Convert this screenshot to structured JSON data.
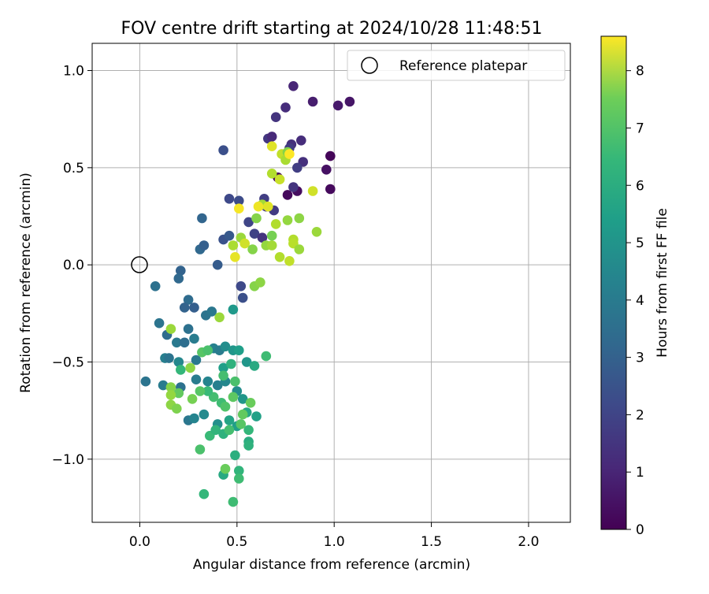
{
  "chart_data": {
    "type": "scatter",
    "title": "FOV centre drift starting at 2024/10/28 11:48:51",
    "xlabel": "Angular distance from reference (arcmin)",
    "ylabel": "Rotation from reference (arcmin)",
    "xlim": [
      -0.245,
      2.215
    ],
    "ylim": [
      -1.325,
      1.14
    ],
    "x_ticks": [
      0.0,
      0.5,
      1.0,
      1.5,
      2.0
    ],
    "x_tick_labels": [
      "0.0",
      "0.5",
      "1.0",
      "1.5",
      "2.0"
    ],
    "y_ticks": [
      -1.0,
      -0.5,
      0.0,
      0.5,
      1.0
    ],
    "y_tick_labels": [
      "−1.0",
      "−0.5",
      "0.0",
      "0.5",
      "1.0"
    ],
    "grid": true,
    "legend": {
      "location": "top-right",
      "entries": [
        {
          "label": "Reference platepar",
          "marker": "open-circle"
        }
      ]
    },
    "reference_point": {
      "x": 0.0,
      "y": 0.0
    },
    "colorbar": {
      "label": "Hours from first FF file",
      "colormap": "viridis",
      "range": [
        0,
        8.6
      ],
      "ticks": [
        0,
        1,
        2,
        3,
        4,
        5,
        6,
        7,
        8
      ],
      "tick_labels": [
        "0",
        "1",
        "2",
        "3",
        "4",
        "5",
        "6",
        "7",
        "8"
      ]
    },
    "points": [
      {
        "x": 0.79,
        "y": 0.92,
        "t": 0.9
      },
      {
        "x": 0.89,
        "y": 0.84,
        "t": 0.7
      },
      {
        "x": 1.02,
        "y": 0.82,
        "t": 0.6
      },
      {
        "x": 1.08,
        "y": 0.84,
        "t": 0.5
      },
      {
        "x": 0.75,
        "y": 0.81,
        "t": 1.1
      },
      {
        "x": 0.7,
        "y": 0.76,
        "t": 1.3
      },
      {
        "x": 0.66,
        "y": 0.65,
        "t": 1.4
      },
      {
        "x": 0.68,
        "y": 0.66,
        "t": 1.0
      },
      {
        "x": 0.78,
        "y": 0.62,
        "t": 1.2
      },
      {
        "x": 0.83,
        "y": 0.64,
        "t": 1.1
      },
      {
        "x": 0.77,
        "y": 0.6,
        "t": 1.5
      },
      {
        "x": 0.98,
        "y": 0.56,
        "t": 0.1
      },
      {
        "x": 0.84,
        "y": 0.53,
        "t": 1.2
      },
      {
        "x": 0.81,
        "y": 0.5,
        "t": 1.6
      },
      {
        "x": 0.96,
        "y": 0.49,
        "t": 0.4
      },
      {
        "x": 0.98,
        "y": 0.39,
        "t": 0.2
      },
      {
        "x": 0.81,
        "y": 0.38,
        "t": 0.3
      },
      {
        "x": 0.76,
        "y": 0.36,
        "t": 0.2
      },
      {
        "x": 0.79,
        "y": 0.4,
        "t": 1.3
      },
      {
        "x": 0.71,
        "y": 0.45,
        "t": 0.1
      },
      {
        "x": 0.43,
        "y": 0.59,
        "t": 2.1
      },
      {
        "x": 0.46,
        "y": 0.34,
        "t": 1.9
      },
      {
        "x": 0.51,
        "y": 0.33,
        "t": 2.0
      },
      {
        "x": 0.64,
        "y": 0.34,
        "t": 1.6
      },
      {
        "x": 0.65,
        "y": 0.3,
        "t": 1.4
      },
      {
        "x": 0.69,
        "y": 0.28,
        "t": 1.5
      },
      {
        "x": 0.56,
        "y": 0.22,
        "t": 1.8
      },
      {
        "x": 0.59,
        "y": 0.16,
        "t": 1.7
      },
      {
        "x": 0.63,
        "y": 0.14,
        "t": 1.3
      },
      {
        "x": 0.43,
        "y": 0.13,
        "t": 2.2
      },
      {
        "x": 0.46,
        "y": 0.15,
        "t": 2.4
      },
      {
        "x": 0.52,
        "y": -0.11,
        "t": 1.9
      },
      {
        "x": 0.53,
        "y": -0.17,
        "t": 2.1
      },
      {
        "x": 0.32,
        "y": 0.24,
        "t": 2.8
      },
      {
        "x": 0.31,
        "y": 0.08,
        "t": 2.9
      },
      {
        "x": 0.33,
        "y": 0.1,
        "t": 2.6
      },
      {
        "x": 0.4,
        "y": 0.0,
        "t": 2.5
      },
      {
        "x": 0.21,
        "y": -0.03,
        "t": 2.7
      },
      {
        "x": 0.2,
        "y": -0.07,
        "t": 2.9
      },
      {
        "x": 0.08,
        "y": -0.11,
        "t": 3.2
      },
      {
        "x": 0.25,
        "y": -0.18,
        "t": 3.0
      },
      {
        "x": 0.23,
        "y": -0.22,
        "t": 2.7
      },
      {
        "x": 0.28,
        "y": -0.22,
        "t": 2.6
      },
      {
        "x": 0.34,
        "y": -0.26,
        "t": 3.3
      },
      {
        "x": 0.37,
        "y": -0.24,
        "t": 3.4
      },
      {
        "x": 0.1,
        "y": -0.3,
        "t": 3.3
      },
      {
        "x": 0.14,
        "y": -0.36,
        "t": 3.0
      },
      {
        "x": 0.19,
        "y": -0.4,
        "t": 3.5
      },
      {
        "x": 0.23,
        "y": -0.4,
        "t": 3.1
      },
      {
        "x": 0.25,
        "y": -0.33,
        "t": 3.2
      },
      {
        "x": 0.28,
        "y": -0.38,
        "t": 3.6
      },
      {
        "x": 0.38,
        "y": -0.43,
        "t": 3.8
      },
      {
        "x": 0.41,
        "y": -0.44,
        "t": 3.6
      },
      {
        "x": 0.44,
        "y": -0.42,
        "t": 4.2
      },
      {
        "x": 0.48,
        "y": -0.44,
        "t": 4.5
      },
      {
        "x": 0.51,
        "y": -0.44,
        "t": 4.8
      },
      {
        "x": 0.48,
        "y": -0.23,
        "t": 4.6
      },
      {
        "x": 0.13,
        "y": -0.48,
        "t": 3.7
      },
      {
        "x": 0.15,
        "y": -0.48,
        "t": 3.3
      },
      {
        "x": 0.2,
        "y": -0.5,
        "t": 4.0
      },
      {
        "x": 0.29,
        "y": -0.49,
        "t": 3.5
      },
      {
        "x": 0.43,
        "y": -0.53,
        "t": 4.8
      },
      {
        "x": 0.47,
        "y": -0.51,
        "t": 5.5
      },
      {
        "x": 0.55,
        "y": -0.5,
        "t": 4.5
      },
      {
        "x": 0.59,
        "y": -0.52,
        "t": 5.2
      },
      {
        "x": 0.65,
        "y": -0.47,
        "t": 5.9
      },
      {
        "x": 0.03,
        "y": -0.6,
        "t": 3.3
      },
      {
        "x": 0.12,
        "y": -0.62,
        "t": 3.6
      },
      {
        "x": 0.21,
        "y": -0.63,
        "t": 3.2
      },
      {
        "x": 0.29,
        "y": -0.59,
        "t": 3.6
      },
      {
        "x": 0.35,
        "y": -0.6,
        "t": 3.9
      },
      {
        "x": 0.4,
        "y": -0.62,
        "t": 3.7
      },
      {
        "x": 0.44,
        "y": -0.6,
        "t": 4.0
      },
      {
        "x": 0.49,
        "y": -0.6,
        "t": 6.1
      },
      {
        "x": 0.5,
        "y": -0.65,
        "t": 4.2
      },
      {
        "x": 0.53,
        "y": -0.69,
        "t": 4.5
      },
      {
        "x": 0.25,
        "y": -0.8,
        "t": 3.4
      },
      {
        "x": 0.28,
        "y": -0.79,
        "t": 3.9
      },
      {
        "x": 0.33,
        "y": -0.77,
        "t": 4.1
      },
      {
        "x": 0.4,
        "y": -0.82,
        "t": 4.3
      },
      {
        "x": 0.46,
        "y": -0.8,
        "t": 5.0
      },
      {
        "x": 0.5,
        "y": -0.83,
        "t": 4.8
      },
      {
        "x": 0.55,
        "y": -0.76,
        "t": 5.1
      },
      {
        "x": 0.6,
        "y": -0.78,
        "t": 4.9
      },
      {
        "x": 0.56,
        "y": -0.85,
        "t": 5.7
      },
      {
        "x": 0.56,
        "y": -0.91,
        "t": 5.3
      },
      {
        "x": 0.56,
        "y": -0.93,
        "t": 5.5
      },
      {
        "x": 0.49,
        "y": -0.98,
        "t": 5.4
      },
      {
        "x": 0.43,
        "y": -1.08,
        "t": 5.2
      },
      {
        "x": 0.51,
        "y": -1.06,
        "t": 5.6
      },
      {
        "x": 0.51,
        "y": -1.1,
        "t": 5.9
      },
      {
        "x": 0.33,
        "y": -1.18,
        "t": 5.7
      },
      {
        "x": 0.48,
        "y": -1.22,
        "t": 5.9
      },
      {
        "x": 0.31,
        "y": -0.95,
        "t": 6.1
      },
      {
        "x": 0.44,
        "y": -1.05,
        "t": 6.6
      },
      {
        "x": 0.36,
        "y": -0.88,
        "t": 5.8
      },
      {
        "x": 0.39,
        "y": -0.85,
        "t": 5.6
      },
      {
        "x": 0.43,
        "y": -0.87,
        "t": 5.5
      },
      {
        "x": 0.46,
        "y": -0.85,
        "t": 6.0
      },
      {
        "x": 0.52,
        "y": -0.82,
        "t": 6.3
      },
      {
        "x": 0.53,
        "y": -0.77,
        "t": 6.5
      },
      {
        "x": 0.42,
        "y": -0.71,
        "t": 5.9
      },
      {
        "x": 0.44,
        "y": -0.73,
        "t": 6.2
      },
      {
        "x": 0.48,
        "y": -0.68,
        "t": 6.4
      },
      {
        "x": 0.57,
        "y": -0.71,
        "t": 6.6
      },
      {
        "x": 0.38,
        "y": -0.68,
        "t": 6.0
      },
      {
        "x": 0.35,
        "y": -0.65,
        "t": 5.8
      },
      {
        "x": 0.31,
        "y": -0.65,
        "t": 6.3
      },
      {
        "x": 0.27,
        "y": -0.69,
        "t": 6.8
      },
      {
        "x": 0.2,
        "y": -0.66,
        "t": 6.5
      },
      {
        "x": 0.16,
        "y": -0.63,
        "t": 7.0
      },
      {
        "x": 0.16,
        "y": -0.67,
        "t": 7.2
      },
      {
        "x": 0.16,
        "y": -0.72,
        "t": 7.1
      },
      {
        "x": 0.19,
        "y": -0.74,
        "t": 6.9
      },
      {
        "x": 0.32,
        "y": -0.45,
        "t": 6.3
      },
      {
        "x": 0.35,
        "y": -0.44,
        "t": 6.1
      },
      {
        "x": 0.43,
        "y": -0.57,
        "t": 6.0
      },
      {
        "x": 0.21,
        "y": -0.54,
        "t": 5.7
      },
      {
        "x": 0.26,
        "y": -0.53,
        "t": 7.1
      },
      {
        "x": 0.16,
        "y": -0.33,
        "t": 7.3
      },
      {
        "x": 0.41,
        "y": -0.27,
        "t": 7.3
      },
      {
        "x": 0.59,
        "y": -0.11,
        "t": 7.0
      },
      {
        "x": 0.62,
        "y": -0.09,
        "t": 7.1
      },
      {
        "x": 0.48,
        "y": 0.1,
        "t": 7.5
      },
      {
        "x": 0.52,
        "y": 0.14,
        "t": 7.3
      },
      {
        "x": 0.54,
        "y": 0.11,
        "t": 8.0
      },
      {
        "x": 0.58,
        "y": 0.08,
        "t": 7.0
      },
      {
        "x": 0.65,
        "y": 0.1,
        "t": 7.2
      },
      {
        "x": 0.68,
        "y": 0.15,
        "t": 6.8
      },
      {
        "x": 0.68,
        "y": 0.1,
        "t": 7.4
      },
      {
        "x": 0.72,
        "y": 0.04,
        "t": 7.6
      },
      {
        "x": 0.77,
        "y": 0.02,
        "t": 7.8
      },
      {
        "x": 0.79,
        "y": 0.13,
        "t": 7.6
      },
      {
        "x": 0.79,
        "y": 0.11,
        "t": 7.7
      },
      {
        "x": 0.82,
        "y": 0.08,
        "t": 7.3
      },
      {
        "x": 0.91,
        "y": 0.17,
        "t": 7.3
      },
      {
        "x": 0.89,
        "y": 0.38,
        "t": 8.0
      },
      {
        "x": 0.76,
        "y": 0.23,
        "t": 7.2
      },
      {
        "x": 0.82,
        "y": 0.24,
        "t": 7.1
      },
      {
        "x": 0.7,
        "y": 0.21,
        "t": 7.6
      },
      {
        "x": 0.6,
        "y": 0.24,
        "t": 7.0
      },
      {
        "x": 0.63,
        "y": 0.31,
        "t": 7.4
      },
      {
        "x": 0.66,
        "y": 0.3,
        "t": 8.2
      },
      {
        "x": 0.61,
        "y": 0.3,
        "t": 8.4
      },
      {
        "x": 0.51,
        "y": 0.29,
        "t": 8.5
      },
      {
        "x": 0.49,
        "y": 0.04,
        "t": 8.3
      },
      {
        "x": 0.68,
        "y": 0.47,
        "t": 7.6
      },
      {
        "x": 0.72,
        "y": 0.44,
        "t": 7.9
      },
      {
        "x": 0.73,
        "y": 0.57,
        "t": 7.8
      },
      {
        "x": 0.75,
        "y": 0.54,
        "t": 7.5
      },
      {
        "x": 0.76,
        "y": 0.58,
        "t": 7.0
      },
      {
        "x": 0.77,
        "y": 0.57,
        "t": 8.6
      },
      {
        "x": 0.68,
        "y": 0.61,
        "t": 8.2
      }
    ]
  }
}
